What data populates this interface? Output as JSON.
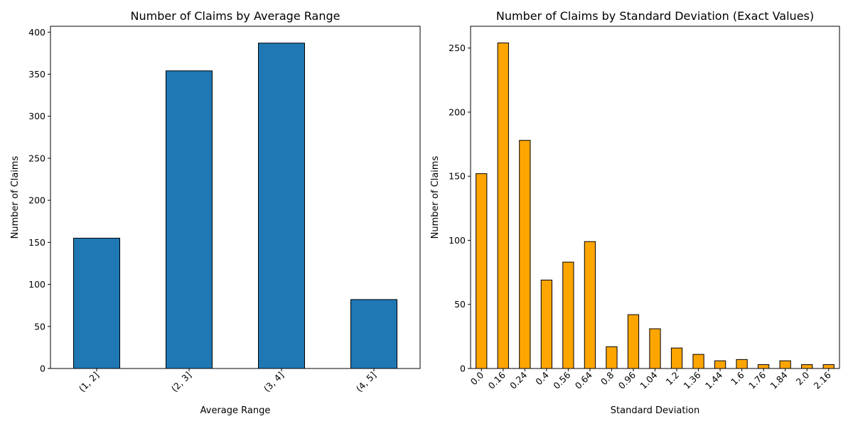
{
  "chart_data": [
    {
      "type": "bar",
      "title": "Number of Claims by Average Range",
      "xlabel": "Average Range",
      "ylabel": "Number of Claims",
      "categories": [
        "(1, 2]",
        "(2, 3]",
        "(3, 4]",
        "(4, 5]"
      ],
      "values": [
        155,
        354,
        387,
        82
      ],
      "ylim": [
        0,
        407
      ],
      "yticks": [
        0,
        50,
        100,
        150,
        200,
        250,
        300,
        350,
        400
      ],
      "color": "#1f77b4",
      "grid": false
    },
    {
      "type": "bar",
      "title": "Number of Claims by Standard Deviation (Exact Values)",
      "xlabel": "Standard Deviation",
      "ylabel": "Number of Claims",
      "categories": [
        "0.0",
        "0.16",
        "0.24",
        "0.4",
        "0.56",
        "0.64",
        "0.8",
        "0.96",
        "1.04",
        "1.2",
        "1.36",
        "1.44",
        "1.6",
        "1.76",
        "1.84",
        "2.0",
        "2.16"
      ],
      "values": [
        152,
        254,
        178,
        69,
        83,
        99,
        17,
        42,
        31,
        16,
        11,
        6,
        7,
        3,
        6,
        3,
        3
      ],
      "ylim": [
        0,
        267
      ],
      "yticks": [
        0,
        50,
        100,
        150,
        200,
        250
      ],
      "color": "#ffa500",
      "grid": false
    }
  ]
}
